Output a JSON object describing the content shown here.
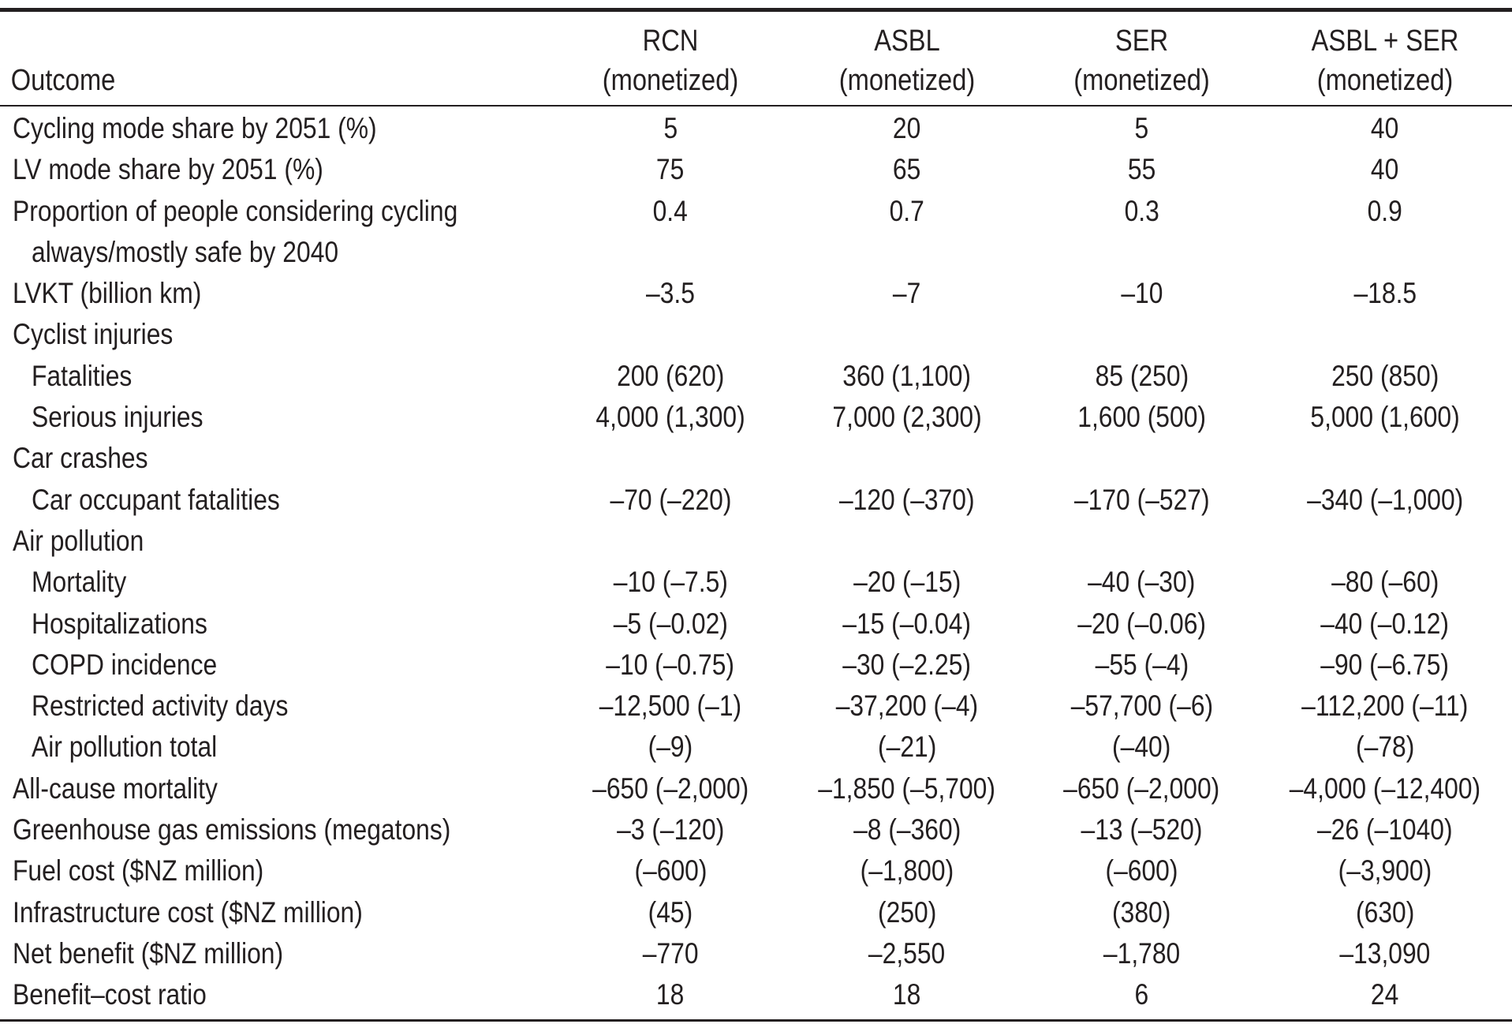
{
  "table": {
    "header": {
      "outcome": "Outcome",
      "columns": [
        {
          "line1": "RCN",
          "line2": "(monetized)"
        },
        {
          "line1": "ASBL",
          "line2": "(monetized)"
        },
        {
          "line1": "SER",
          "line2": "(monetized)"
        },
        {
          "line1": "ASBL + SER",
          "line2": "(monetized)"
        }
      ]
    },
    "rows": [
      {
        "label": "Cycling mode share by 2051 (%)",
        "values": [
          "5",
          "20",
          "5",
          "40"
        ]
      },
      {
        "label": "LV mode share by 2051 (%)",
        "values": [
          "75",
          "65",
          "55",
          "40"
        ]
      },
      {
        "label": "Proportion of people considering cycling",
        "values": [
          "0.4",
          "0.7",
          "0.3",
          "0.9"
        ]
      },
      {
        "label": "always/mostly safe by 2040",
        "values": [
          "",
          "",
          "",
          ""
        ]
      },
      {
        "label": "LVKT (billion km)",
        "values": [
          "–3.5",
          "–7",
          "–10",
          "–18.5"
        ]
      },
      {
        "label": "Cyclist injuries",
        "values": [
          "",
          "",
          "",
          ""
        ]
      },
      {
        "label": "Fatalities",
        "values": [
          "200 (620)",
          "360 (1,100)",
          "85 (250)",
          "250 (850)"
        ]
      },
      {
        "label": "Serious injuries",
        "values": [
          "4,000 (1,300)",
          "7,000 (2,300)",
          "1,600 (500)",
          "5,000 (1,600)"
        ]
      },
      {
        "label": "Car crashes",
        "values": [
          "",
          "",
          "",
          ""
        ]
      },
      {
        "label": "Car occupant fatalities",
        "values": [
          "–70 (–220)",
          "–120 (–370)",
          "–170 (–527)",
          "–340 (–1,000)"
        ]
      },
      {
        "label": "Air pollution",
        "values": [
          "",
          "",
          "",
          ""
        ]
      },
      {
        "label": "Mortality",
        "values": [
          "–10 (–7.5)",
          "–20 (–15)",
          "–40 (–30)",
          "–80 (–60)"
        ]
      },
      {
        "label": "Hospitalizations",
        "values": [
          "–5 (–0.02)",
          "–15 (–0.04)",
          "–20 (–0.06)",
          "–40 (–0.12)"
        ]
      },
      {
        "label": "COPD incidence",
        "values": [
          "–10 (–0.75)",
          "–30 (–2.25)",
          "–55 (–4)",
          "–90 (–6.75)"
        ]
      },
      {
        "label": "Restricted activity days",
        "values": [
          "–12,500 (–1)",
          "–37,200 (–4)",
          "–57,700 (–6)",
          "–112,200 (–11)"
        ]
      },
      {
        "label": "Air pollution total",
        "values": [
          "(–9)",
          "(–21)",
          "(–40)",
          "(–78)"
        ]
      },
      {
        "label": "All-cause mortality",
        "values": [
          "–650 (–2,000)",
          "–1,850 (–5,700)",
          "–650 (–2,000)",
          "–4,000 (–12,400)"
        ]
      },
      {
        "label": "Greenhouse gas emissions (megatons)",
        "values": [
          "–3 (–120)",
          "–8 (–360)",
          "–13 (–520)",
          "–26 (–1040)"
        ]
      },
      {
        "label": "Fuel cost ($NZ million)",
        "values": [
          "(–600)",
          "(–1,800)",
          "(–600)",
          "(–3,900)"
        ]
      },
      {
        "label": "Infrastructure cost ($NZ million)",
        "values": [
          "(45)",
          "(250)",
          "(380)",
          "(630)"
        ]
      },
      {
        "label": "Net benefit ($NZ million)",
        "values": [
          "–770",
          "–2,550",
          "–1,780",
          "–13,090"
        ]
      },
      {
        "label": "Benefit–cost ratio",
        "values": [
          "18",
          "18",
          "6",
          "24"
        ]
      }
    ]
  }
}
